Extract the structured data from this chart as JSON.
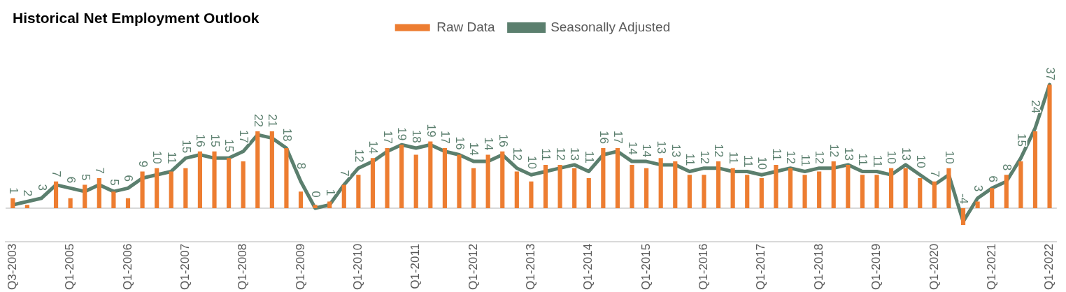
{
  "chart_data": {
    "type": "bar",
    "title": "Historical Net Employment Outlook",
    "categories": [
      "Q3-2003",
      null,
      null,
      null,
      "Q1-2005",
      null,
      null,
      null,
      "Q1-2006",
      null,
      null,
      null,
      "Q1-2007",
      null,
      null,
      null,
      "Q1-2008",
      null,
      null,
      null,
      "Q1-2009",
      null,
      null,
      null,
      "Q1-2010",
      null,
      null,
      null,
      "Q1-2011",
      null,
      null,
      null,
      "Q1-2012",
      null,
      null,
      null,
      "Q1-2013",
      null,
      null,
      null,
      "Q1-2014",
      null,
      null,
      null,
      "Q1-2015",
      null,
      null,
      null,
      "Q1-2016",
      null,
      null,
      null,
      "Q1-2017",
      null,
      null,
      null,
      "Q1-2018",
      null,
      null,
      null,
      "Q1-2019",
      null,
      null,
      null,
      "Q1-2020",
      null,
      null,
      null,
      "Q1-2021",
      null,
      null,
      null,
      "Q1-2022"
    ],
    "series": [
      {
        "name": "Raw Data",
        "color": "#ed7d31",
        "values": [
          3,
          1,
          0,
          8,
          3,
          7,
          9,
          5,
          3,
          11,
          12,
          11,
          12,
          17,
          17,
          15,
          14,
          23,
          23,
          18,
          5,
          1,
          2,
          7,
          10,
          15,
          18,
          19,
          16,
          20,
          18,
          16,
          12,
          16,
          17,
          11,
          8,
          13,
          13,
          12,
          9,
          18,
          18,
          13,
          12,
          15,
          14,
          10,
          10,
          14,
          12,
          10,
          9,
          13,
          12,
          10,
          11,
          14,
          13,
          10,
          10,
          12,
          12,
          9,
          8,
          12,
          -5,
          2,
          6,
          10,
          14,
          23,
          37
        ]
      },
      {
        "name": "Seasonally Adjusted",
        "type": "line",
        "color": "#5b7f6e",
        "values": [
          1,
          2,
          3,
          7,
          6,
          5,
          7,
          5,
          6,
          9,
          10,
          11,
          15,
          16,
          15,
          15,
          17,
          22,
          21,
          18,
          8,
          0,
          1,
          7,
          12,
          14,
          17,
          19,
          18,
          19,
          17,
          16,
          14,
          14,
          16,
          12,
          10,
          11,
          12,
          13,
          11,
          16,
          17,
          14,
          14,
          13,
          13,
          11,
          12,
          12,
          11,
          11,
          10,
          11,
          12,
          11,
          12,
          12,
          13,
          11,
          11,
          10,
          13,
          10,
          7,
          10,
          -4,
          3,
          6,
          8,
          15,
          24,
          37
        ],
        "value_labels": [
          "1",
          "2",
          "3",
          "7",
          "6",
          "5",
          "7",
          "5",
          "6",
          "9",
          "10",
          "11",
          "15",
          "16",
          "15",
          "15",
          "17",
          "22",
          "21",
          "18",
          "8",
          "0",
          "1",
          "7",
          "12",
          "14",
          "17",
          "19",
          "18",
          "19",
          "17",
          "16",
          "14",
          "14",
          "16",
          "12",
          "10",
          "11",
          "12",
          "13",
          "11",
          "16",
          "17",
          "14",
          "14",
          "13",
          "13",
          "11",
          "12",
          "12",
          "11",
          "11",
          "10",
          "11",
          "12",
          "11",
          "12",
          "12",
          "13",
          "11",
          "11",
          "10",
          "13",
          "10",
          "7",
          "10",
          "-4",
          "3",
          "6",
          "8",
          "15",
          "24",
          "37"
        ]
      }
    ],
    "legend": "top",
    "grid": false,
    "marker": "none"
  }
}
